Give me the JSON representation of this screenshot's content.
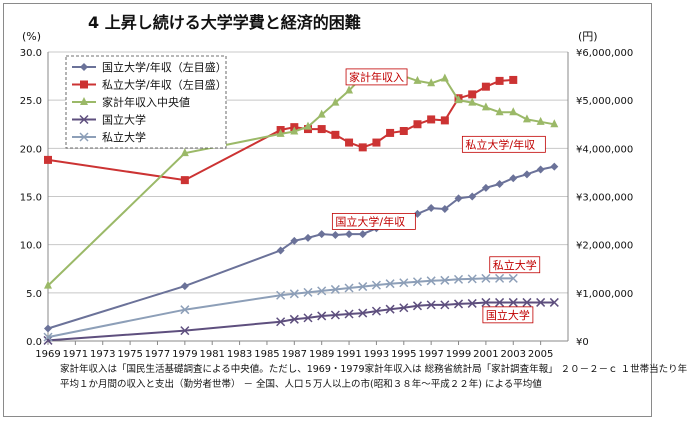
{
  "chart_data": {
    "type": "line",
    "title": "4 上昇し続ける大学学費と経済的困難",
    "y_left_unit": "(%)",
    "y_right_unit": "(円)",
    "y_left_ticks": [
      "0.0",
      "5.0",
      "10.0",
      "15.0",
      "20.0",
      "25.0",
      "30.0"
    ],
    "y_right_ticks": [
      "¥0",
      "¥1,000,000",
      "¥2,000,000",
      "¥3,000,000",
      "¥4,000,000",
      "¥5,000,000",
      "¥6,000,000"
    ],
    "ylim_left": [
      0,
      30
    ],
    "ylim_right": [
      0,
      6000000
    ],
    "x_ticks": [
      "1969",
      "1971",
      "1973",
      "1975",
      "1977",
      "1979",
      "1981",
      "1983",
      "1985",
      "1987",
      "1989",
      "1991",
      "1993",
      "1995",
      "1997",
      "1999",
      "2001",
      "2003",
      "2005"
    ],
    "xlim": [
      1969,
      2007
    ],
    "grid": "horizontal",
    "legend_position": "top-left",
    "series": [
      {
        "name": "国立大学/年収（左目盛）",
        "axis": "left",
        "color": "#6b7299",
        "marker": "diamond",
        "x": [
          1969,
          1979,
          1986,
          1987,
          1988,
          1989,
          1990,
          1991,
          1992,
          1993,
          1994,
          1995,
          1996,
          1997,
          1998,
          1999,
          2000,
          2001,
          2002,
          2003,
          2004,
          2005,
          2006
        ],
        "values": [
          1.3,
          5.7,
          9.4,
          10.4,
          10.7,
          11.1,
          11.0,
          11.1,
          11.1,
          11.7,
          12.3,
          12.8,
          13.2,
          13.8,
          13.7,
          14.8,
          15.0,
          15.9,
          16.3,
          16.9,
          17.3,
          17.8,
          18.1
        ]
      },
      {
        "name": "私立大学/年収（左目盛）",
        "axis": "left",
        "color": "#cc3333",
        "marker": "square",
        "x": [
          1969,
          1979,
          1986,
          1987,
          1988,
          1989,
          1990,
          1991,
          1992,
          1993,
          1994,
          1995,
          1996,
          1997,
          1998,
          1999,
          2000,
          2001,
          2002,
          2003
        ],
        "values": [
          18.8,
          16.7,
          21.9,
          22.2,
          22.0,
          22.0,
          21.4,
          20.6,
          20.1,
          20.6,
          21.6,
          21.8,
          22.5,
          23.0,
          22.9,
          25.2,
          25.6,
          26.4,
          27.0,
          27.1
        ]
      },
      {
        "name": "家計年収入中央値",
        "axis": "right",
        "color": "#9bb968",
        "marker": "triangle",
        "x": [
          1969,
          1979,
          1986,
          1987,
          1988,
          1989,
          1990,
          1991,
          1992,
          1993,
          1994,
          1995,
          1996,
          1997,
          1998,
          1999,
          2000,
          2001,
          2002,
          2003,
          2004,
          2005,
          2006
        ],
        "values": [
          1150000,
          3900000,
          4300000,
          4350000,
          4450000,
          4700000,
          4950000,
          5200000,
          5500000,
          5500000,
          5450000,
          5500000,
          5400000,
          5350000,
          5450000,
          5000000,
          4950000,
          4850000,
          4750000,
          4750000,
          4600000,
          4550000,
          4500000
        ]
      },
      {
        "name": "国立大学",
        "axis": "right",
        "color": "#5e4f7e",
        "marker": "x",
        "x": [
          1969,
          1979,
          1986,
          1987,
          1988,
          1989,
          1990,
          1991,
          1992,
          1993,
          1994,
          1995,
          1996,
          1997,
          1998,
          1999,
          2000,
          2001,
          2002,
          2003,
          2004,
          2005,
          2006
        ],
        "values": [
          12000,
          216000,
          400000,
          450000,
          480000,
          520000,
          540000,
          560000,
          580000,
          620000,
          660000,
          690000,
          730000,
          750000,
          750000,
          770000,
          780000,
          800000,
          800000,
          800000,
          800000,
          800000,
          800000
        ]
      },
      {
        "name": "私立大学",
        "axis": "right",
        "color": "#8d9fb8",
        "marker": "x",
        "x": [
          1969,
          1979,
          1986,
          1987,
          1988,
          1989,
          1990,
          1991,
          1992,
          1993,
          1994,
          1995,
          1996,
          1997,
          1998,
          1999,
          2000,
          2001,
          2002,
          2003
        ],
        "values": [
          80000,
          650000,
          950000,
          980000,
          1010000,
          1040000,
          1070000,
          1100000,
          1130000,
          1160000,
          1190000,
          1210000,
          1230000,
          1250000,
          1260000,
          1280000,
          1290000,
          1300000,
          1300000,
          1300000
        ]
      }
    ],
    "annotations": [
      {
        "text": "家計年収入",
        "x": 1991,
        "y_left": 27.0
      },
      {
        "text": "私立大学/年収",
        "x": 1999.5,
        "y_left": 20.0
      },
      {
        "text": "国立大学/年収",
        "x": 1990,
        "y_left": 12.0
      },
      {
        "text": "私立大学",
        "x": 2001.5,
        "y_left": 7.5
      },
      {
        "text": "国立大学",
        "x": 2001,
        "y_left": 2.3
      }
    ]
  },
  "footnote": {
    "line1": "家計年収入は「国民生活基礎調査による中央値。ただし、1969・1979家計年収入は 総務省統計局「家計調査年報」 ２０－２－ｃ １世帯当たり年",
    "line2": "平均１か月間の収入と支出（勤労者世帯） －  全国、人口５万人以上の市(昭和３８年～平成２２年) による平均値"
  }
}
